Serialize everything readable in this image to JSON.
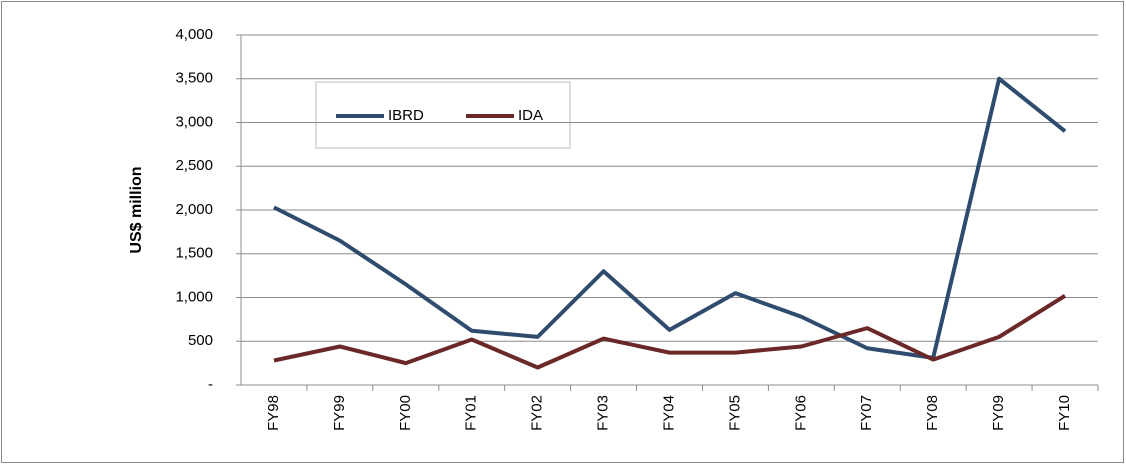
{
  "chart_data": {
    "type": "line",
    "y_label": "US$ million",
    "categories": [
      "FY98",
      "FY99",
      "FY00",
      "FY01",
      "FY02",
      "FY03",
      "FY04",
      "FY05",
      "FY06",
      "FY07",
      "FY08",
      "FY09",
      "FY10"
    ],
    "series": [
      {
        "name": "IBRD",
        "color": "#2f4b6e",
        "values": [
          2030,
          1650,
          1150,
          620,
          550,
          1300,
          630,
          1050,
          780,
          420,
          310,
          3500,
          2900
        ]
      },
      {
        "name": "IDA",
        "color": "#6b2828",
        "values": [
          280,
          440,
          250,
          520,
          200,
          530,
          370,
          370,
          440,
          650,
          290,
          550,
          1020
        ]
      }
    ],
    "ylim": [
      0,
      4000
    ],
    "yticks": [
      {
        "value": 0,
        "label": "-"
      },
      500,
      {
        "value": 1000,
        "label": "1,000"
      },
      {
        "value": 1500,
        "label": "1,500"
      },
      {
        "value": 2000,
        "label": "2,000"
      },
      {
        "value": 2500,
        "label": "2,500"
      },
      {
        "value": 3000,
        "label": "3,000"
      },
      {
        "value": 3500,
        "label": "3,500"
      },
      {
        "value": 4000,
        "label": "4,000"
      }
    ],
    "grid": true
  }
}
